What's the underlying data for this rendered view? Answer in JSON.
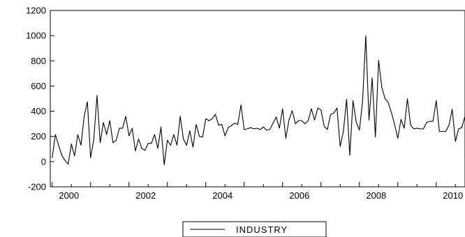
{
  "chart_data": {
    "type": "line",
    "title": "",
    "xlabel": "",
    "ylabel": "",
    "xlim": [
      1999.95,
      2010.75
    ],
    "ylim": [
      -200,
      1200
    ],
    "y_ticks": [
      -200,
      0,
      200,
      400,
      600,
      800,
      1000,
      1200
    ],
    "x_tick_labels": [
      "2000",
      "2002",
      "2004",
      "2006",
      "2008",
      "2010"
    ],
    "x_tick_values": [
      2000,
      2002,
      2004,
      2006,
      2008,
      2010
    ],
    "grid": false,
    "legend_position": "bottom-center",
    "line_color": "#000000",
    "series": [
      {
        "name": "INDUSTRY",
        "x_start": 2000.0,
        "x_step": 0.0833333,
        "values": [
          30,
          215,
          130,
          50,
          10,
          -20,
          140,
          45,
          215,
          130,
          360,
          475,
          30,
          175,
          525,
          150,
          310,
          215,
          325,
          150,
          170,
          265,
          265,
          360,
          205,
          265,
          85,
          180,
          105,
          90,
          145,
          145,
          215,
          105,
          275,
          -25,
          170,
          130,
          215,
          130,
          360,
          180,
          130,
          245,
          115,
          295,
          200,
          195,
          340,
          325,
          340,
          375,
          290,
          295,
          205,
          270,
          285,
          305,
          295,
          450,
          255,
          260,
          270,
          260,
          265,
          255,
          275,
          250,
          255,
          305,
          355,
          265,
          420,
          185,
          330,
          405,
          300,
          325,
          325,
          300,
          325,
          420,
          330,
          425,
          410,
          280,
          255,
          375,
          385,
          425,
          120,
          240,
          495,
          50,
          485,
          315,
          250,
          480,
          1000,
          330,
          665,
          195,
          805,
          590,
          500,
          470,
          390,
          295,
          185,
          335,
          265,
          500,
          290,
          260,
          265,
          260,
          260,
          310,
          320,
          320,
          485,
          240,
          240,
          240,
          290,
          415,
          160,
          260,
          270,
          360,
          25,
          275,
          385,
          265,
          350,
          270
        ]
      }
    ]
  }
}
